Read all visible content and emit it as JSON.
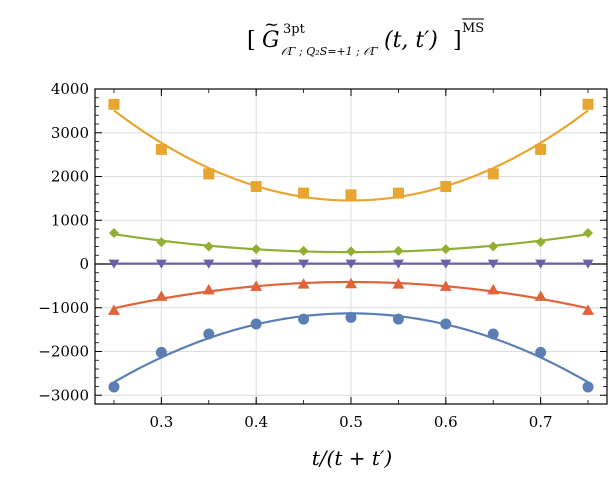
{
  "chart_data": {
    "type": "line",
    "title_parts": {
      "open": "[",
      "G": "G",
      "tilde": "~",
      "sup": "3pt",
      "sub": "𝒪Γ ; Q₂S=+1 ; 𝒪Γ",
      "args": "(t, t′)",
      "close": "]",
      "scheme": "MS"
    },
    "xlabel": "t/(t + t′)",
    "ylabel": "",
    "xlim": [
      0.23,
      0.77
    ],
    "ylim": [
      -3200,
      4000
    ],
    "xticks": [
      0.3,
      0.4,
      0.5,
      0.6,
      0.7
    ],
    "xtick_labels": [
      "0.3",
      "0.4",
      "0.5",
      "0.6",
      "0.7"
    ],
    "yticks": [
      -3000,
      -2000,
      -1000,
      0,
      1000,
      2000,
      3000,
      4000
    ],
    "ytick_labels": [
      "−3000",
      "−2000",
      "−1000",
      "0",
      "1000",
      "2000",
      "3000",
      "4000"
    ],
    "grid": true,
    "x": [
      0.25,
      0.3,
      0.35,
      0.4,
      0.45,
      0.5,
      0.55,
      0.6,
      0.65,
      0.7,
      0.75
    ],
    "series": [
      {
        "color": "#e8a530",
        "marker": "square",
        "values": [
          3650,
          2620,
          2060,
          1770,
          1620,
          1580,
          1620,
          1770,
          2060,
          2620,
          3650
        ]
      },
      {
        "color": "#8fb032",
        "marker": "diamond",
        "values": [
          710,
          500,
          400,
          340,
          300,
          290,
          300,
          340,
          400,
          500,
          710
        ]
      },
      {
        "color": "#6e5fa8",
        "marker": "triangle-down",
        "values": [
          10,
          10,
          10,
          10,
          10,
          10,
          10,
          10,
          10,
          10,
          10
        ]
      },
      {
        "color": "#e2633a",
        "marker": "triangle-up",
        "values": [
          -1060,
          -740,
          -590,
          -510,
          -460,
          -450,
          -460,
          -510,
          -590,
          -740,
          -1060
        ]
      },
      {
        "color": "#5b7fb4",
        "marker": "circle",
        "values": [
          -2810,
          -2020,
          -1600,
          -1370,
          -1260,
          -1220,
          -1260,
          -1370,
          -1600,
          -2020,
          -2810
        ]
      }
    ]
  }
}
